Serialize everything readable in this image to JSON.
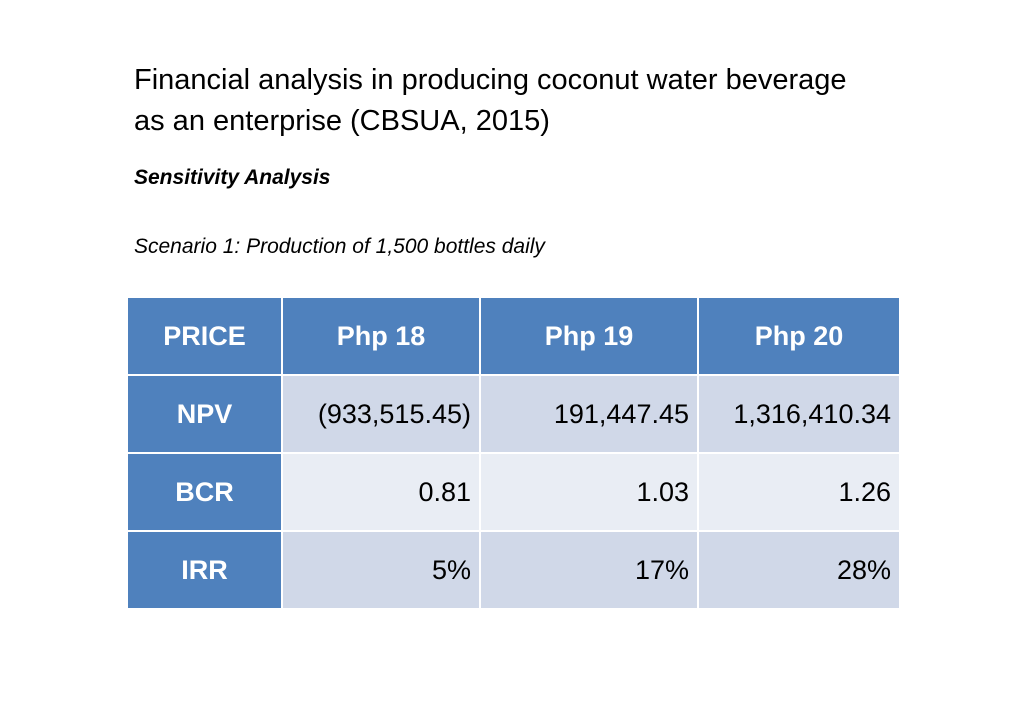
{
  "title": {
    "line1": "Financial analysis in producing coconut water beverage",
    "line2": "as an enterprise (CBSUA, 2015)"
  },
  "subtitle": "Sensitivity Analysis",
  "scenario": "Scenario 1:  Production of 1,500 bottles daily",
  "table": {
    "headers": [
      "PRICE",
      "Php 18",
      "Php 19",
      "Php 20"
    ],
    "rows": [
      {
        "label": "NPV",
        "values": [
          "(933,515.45)",
          "191,447.45",
          "1,316,410.34"
        ]
      },
      {
        "label": "BCR",
        "values": [
          "0.81",
          "1.03",
          "1.26"
        ]
      },
      {
        "label": "IRR",
        "values": [
          "5%",
          "17%",
          "28%"
        ]
      }
    ]
  },
  "colors": {
    "header_bg": "#4f81bd",
    "row_band_1": "#d0d8e8",
    "row_band_2": "#e9edf4"
  }
}
